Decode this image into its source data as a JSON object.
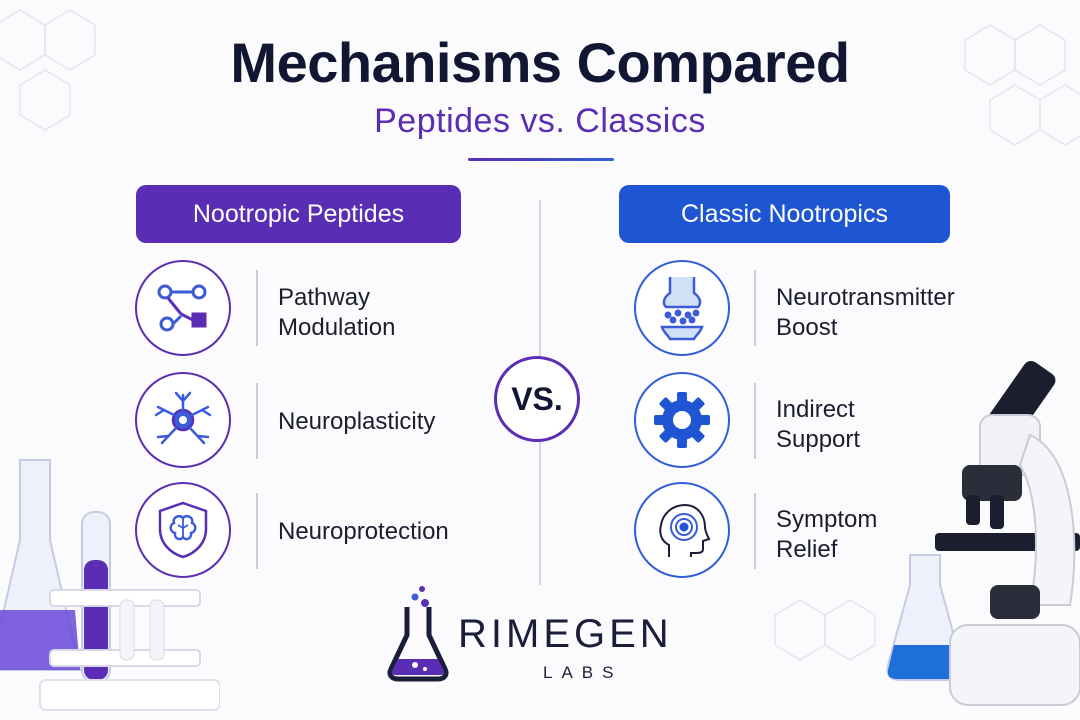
{
  "title": "Mechanisms Compared",
  "subtitle": "Peptides vs. Classics",
  "left": {
    "header": "Nootropic Peptides",
    "items": [
      {
        "label": [
          "Pathway",
          "Modulation"
        ],
        "icon": "pathway-network-icon"
      },
      {
        "label": [
          "Neuroplasticity"
        ],
        "icon": "neuron-icon"
      },
      {
        "label": [
          "Neuroprotection"
        ],
        "icon": "brain-shield-icon"
      }
    ]
  },
  "vs_label": "VS.",
  "right": {
    "header": "Classic Nootropics",
    "items": [
      {
        "label": [
          "Neurotransmitter",
          "Boost"
        ],
        "icon": "synapse-icon"
      },
      {
        "label": [
          "Indirect",
          "Support"
        ],
        "icon": "gear-icon"
      },
      {
        "label": [
          "Symptom",
          "Relief"
        ],
        "icon": "head-target-icon"
      }
    ]
  },
  "brand": {
    "name": "RIMEGEN",
    "sub": "LABS"
  },
  "colors": {
    "purple": "#5a2eb4",
    "blue": "#1e55d2",
    "dark": "#111633"
  }
}
